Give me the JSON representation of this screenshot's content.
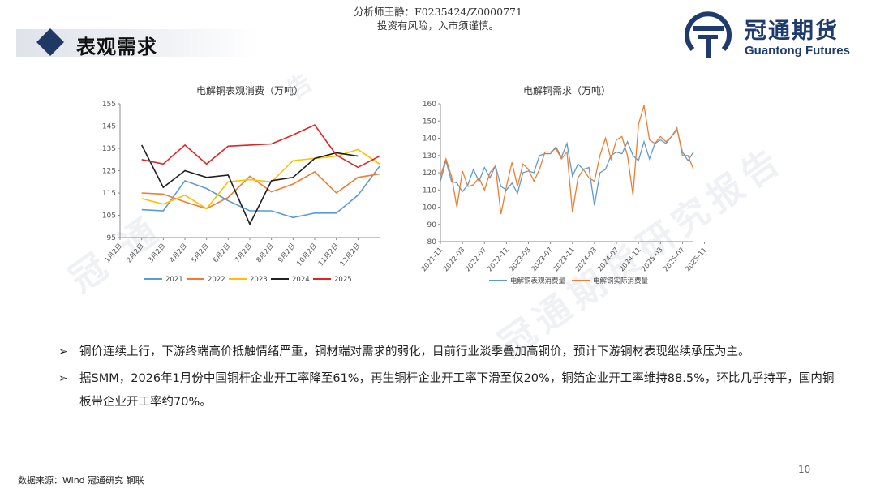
{
  "header": {
    "analyst_line": "分析师王静：F0235424/Z0000771",
    "risk_line": "投资有风险，入市须谨慎。",
    "section_title": "表观需求"
  },
  "logo": {
    "name_cn": "冠通期货",
    "name_en": "Guantong Futures",
    "color": "#1f3b6e"
  },
  "watermark": {
    "text_left": "冠 通",
    "text_right": "冠通期货研究报告",
    "text_top": "告"
  },
  "chart_data": [
    {
      "type": "line",
      "title": "电解铜表观消费（万吨）",
      "x_tick_labels": [
        "1月2日",
        "2月2日",
        "3月2日",
        "4月2日",
        "5月2日",
        "6月2日",
        "7月2日",
        "8月2日",
        "9月2日",
        "10月2日",
        "11月2日",
        "12月2日"
      ],
      "ylim": [
        95,
        155
      ],
      "y_ticks": [
        95,
        105,
        115,
        125,
        135,
        145,
        155
      ],
      "legend_position": "bottom",
      "series": [
        {
          "name": "2021",
          "color": "#5b9bd5",
          "values": [
            null,
            107.5,
            107,
            120.5,
            117,
            111.5,
            107,
            107,
            104,
            106,
            106,
            114,
            127
          ]
        },
        {
          "name": "2022",
          "color": "#ed7d31",
          "values": [
            null,
            115,
            114.5,
            111,
            108,
            113,
            122.5,
            115.5,
            119,
            124.5,
            115,
            122,
            123.5
          ]
        },
        {
          "name": "2023",
          "color": "#ffc000",
          "values": [
            null,
            112.5,
            110,
            114,
            108,
            120,
            121,
            120,
            129.5,
            130.5,
            131.5,
            134.5,
            128
          ]
        },
        {
          "name": "2024",
          "color": "#1f1f1f",
          "values": [
            null,
            136.5,
            117.5,
            125,
            122,
            123,
            101,
            120.5,
            122,
            130.5,
            133,
            131.5,
            null
          ]
        },
        {
          "name": "2025",
          "color": "#e32222",
          "values": [
            null,
            130,
            128,
            136.5,
            128,
            136,
            136.5,
            137,
            141,
            145.5,
            132,
            126.5,
            131.5
          ]
        }
      ]
    },
    {
      "type": "line",
      "title": "电解铜需求（万吨）",
      "x_tick_labels": [
        "2021-11",
        "2022-03",
        "2022-07",
        "2022-11",
        "2023-03",
        "2023-07",
        "2023-11",
        "2024-03",
        "2024-07",
        "2024-11",
        "2025-03",
        "2025-07",
        "2025-11"
      ],
      "ylim": [
        80,
        160
      ],
      "y_ticks": [
        80,
        90,
        100,
        110,
        120,
        130,
        140,
        150,
        160
      ],
      "legend_position": "bottom",
      "series": [
        {
          "name": "电解铜表观消费量",
          "color": "#5b9bd5",
          "values": [
            115,
            127,
            115,
            114,
            109,
            113,
            122,
            115,
            123,
            117,
            124,
            112,
            110,
            114,
            108,
            120,
            121,
            120,
            130,
            131,
            131,
            135,
            129,
            137,
            118,
            125,
            122,
            123,
            101,
            120,
            122,
            130,
            132,
            131,
            138,
            130,
            127,
            138,
            128,
            137,
            139,
            137,
            141,
            145,
            132,
            127,
            132
          ]
        },
        {
          "name": "电解铜实际消费量",
          "color": "#ed7d31",
          "values": [
            118,
            128,
            118,
            100,
            121,
            112,
            113,
            117,
            110,
            120,
            124,
            96,
            112,
            126,
            112,
            125,
            122,
            115,
            122,
            132,
            132,
            134,
            128,
            132,
            97,
            117,
            122,
            117,
            115,
            130,
            140,
            128,
            139,
            141,
            130,
            107,
            148,
            159,
            139,
            137,
            141,
            138,
            141,
            146,
            130,
            130,
            122
          ]
        }
      ]
    }
  ],
  "bullets": [
    "铜价连续上行，下游终端高价抵触情绪严重，铜材端对需求的弱化，目前行业淡季叠加高铜价，预计下游铜材表现继续承压为主。",
    "据SMM，2026年1月份中国铜杆企业开工率降至61%，再生铜杆企业开工率下滑至仅20%，铜箔企业开工率维持88.5%，环比几乎持平，国内铜板带企业开工率约70%。"
  ],
  "footer": {
    "source": "数据来源：Wind 冠通研究 钢联",
    "page_number": "10"
  }
}
